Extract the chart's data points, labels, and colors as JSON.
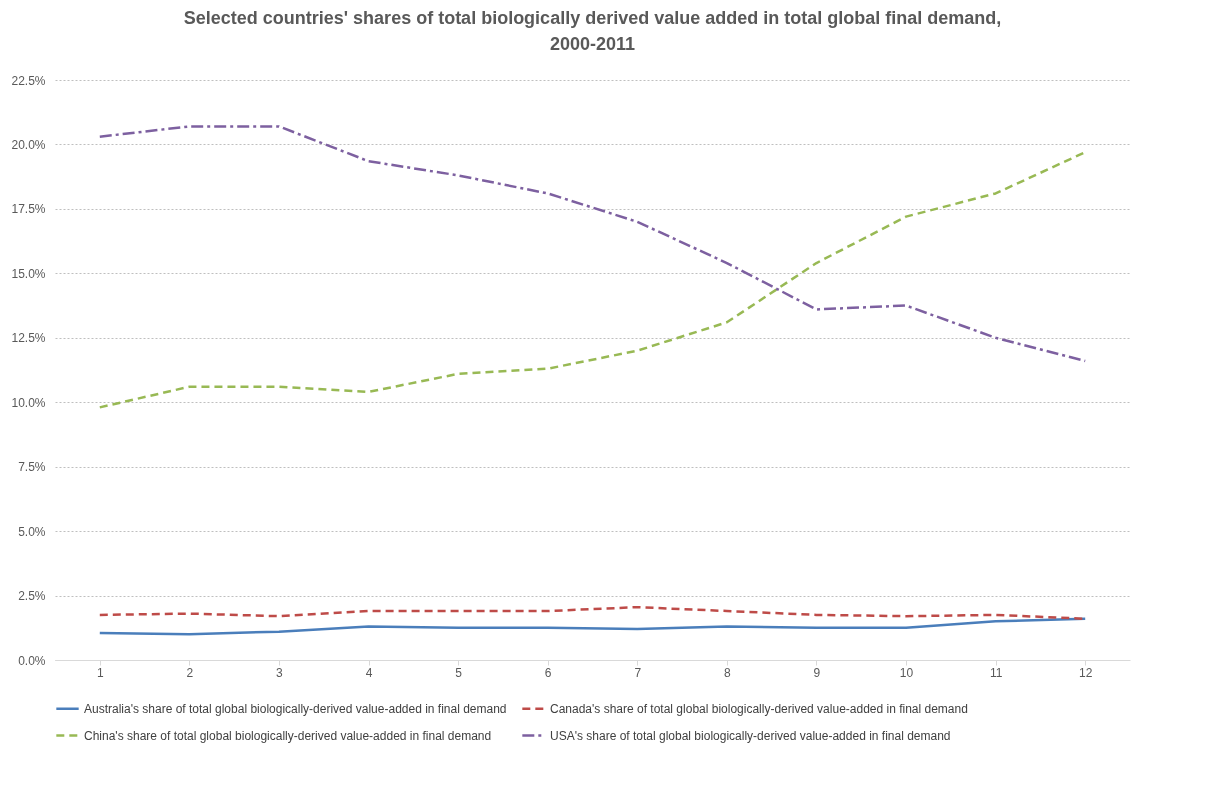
{
  "chart_data": {
    "type": "line",
    "title": "Selected countries' shares of total biologically derived value added in total global final demand, 2000-2011",
    "categories": [
      "1",
      "2",
      "3",
      "4",
      "5",
      "6",
      "7",
      "8",
      "9",
      "10",
      "11",
      "12"
    ],
    "series": [
      {
        "name": "Australia's share of total global biologically-derived value-added in final demand",
        "color": "#4a7ebb",
        "line_style": "solid",
        "values": [
          1.05,
          1.0,
          1.1,
          1.3,
          1.25,
          1.25,
          1.2,
          1.3,
          1.25,
          1.25,
          1.5,
          1.6
        ]
      },
      {
        "name": "Canada's  share of total global biologically-derived value-added in final demand",
        "color": "#be4b48",
        "line_style": "dashed",
        "values": [
          1.75,
          1.8,
          1.7,
          1.9,
          1.9,
          1.9,
          2.05,
          1.9,
          1.75,
          1.7,
          1.75,
          1.6
        ]
      },
      {
        "name": "China's  share of total global biologically-derived value-added in final demand",
        "color": "#98b954",
        "line_style": "dashed",
        "values": [
          9.8,
          10.6,
          10.6,
          10.4,
          11.1,
          11.3,
          12.0,
          13.1,
          15.4,
          17.2,
          18.1,
          19.7
        ]
      },
      {
        "name": "USA's  share of total global biologically-derived value-added in final demand",
        "color": "#7d60a0",
        "line_style": "dashdot",
        "values": [
          20.3,
          20.7,
          20.7,
          19.35,
          18.8,
          18.1,
          17.0,
          15.4,
          13.6,
          13.75,
          12.5,
          11.6
        ]
      }
    ],
    "ylim": [
      0,
      22.5
    ],
    "yticks": [
      {
        "value": 0,
        "label": "0.0%"
      },
      {
        "value": 2.5,
        "label": "2.5%"
      },
      {
        "value": 5,
        "label": "5.0%"
      },
      {
        "value": 7.5,
        "label": "7.5%"
      },
      {
        "value": 10,
        "label": "10.0%"
      },
      {
        "value": 12.5,
        "label": "12.5%"
      },
      {
        "value": 15,
        "label": "15.0%"
      },
      {
        "value": 17.5,
        "label": "17.5%"
      },
      {
        "value": 20,
        "label": "20.0%"
      },
      {
        "value": 22.5,
        "label": "22.5%"
      }
    ],
    "grid": "y",
    "legend": "bottom",
    "marker": "none"
  }
}
